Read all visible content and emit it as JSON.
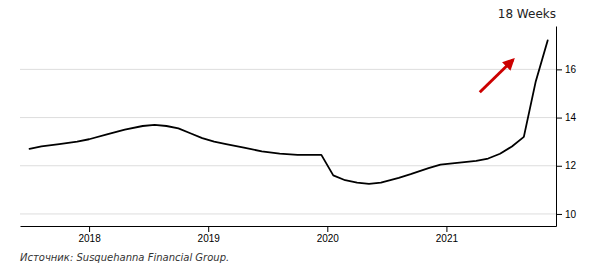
{
  "chart_data": {
    "type": "line",
    "title": "18 Weeks",
    "source": "Источник: Susquehanna Financial Group.",
    "color": "#000000",
    "x": [
      2017.5,
      2017.6,
      2017.75,
      2017.9,
      2018.0,
      2018.15,
      2018.3,
      2018.45,
      2018.55,
      2018.65,
      2018.75,
      2018.85,
      2018.95,
      2019.05,
      2019.15,
      2019.3,
      2019.45,
      2019.6,
      2019.75,
      2019.85,
      2019.95,
      2020.05,
      2020.15,
      2020.25,
      2020.35,
      2020.45,
      2020.6,
      2020.7,
      2020.85,
      2020.95,
      2021.05,
      2021.15,
      2021.25,
      2021.35,
      2021.45,
      2021.55,
      2021.65,
      2021.75,
      2021.85
    ],
    "values": [
      12.7,
      12.8,
      12.9,
      13.0,
      13.1,
      13.3,
      13.5,
      13.65,
      13.7,
      13.65,
      13.55,
      13.35,
      13.15,
      13.0,
      12.9,
      12.75,
      12.6,
      12.5,
      12.45,
      12.45,
      12.45,
      11.6,
      11.4,
      11.3,
      11.25,
      11.3,
      11.5,
      11.65,
      11.9,
      12.05,
      12.1,
      12.15,
      12.2,
      12.3,
      12.5,
      12.8,
      13.2,
      15.5,
      17.2
    ],
    "xlim": [
      2017.42,
      2021.92
    ],
    "xticks": [
      2018,
      2019,
      2020,
      2021
    ],
    "ylim": [
      9.5,
      17.8
    ],
    "yticks": [
      10,
      12,
      14,
      16
    ],
    "grid": true,
    "arrow": {
      "from": [
        2021.28,
        15.05
      ],
      "to": [
        2021.56,
        16.4
      ],
      "color": "#cc0000"
    }
  }
}
